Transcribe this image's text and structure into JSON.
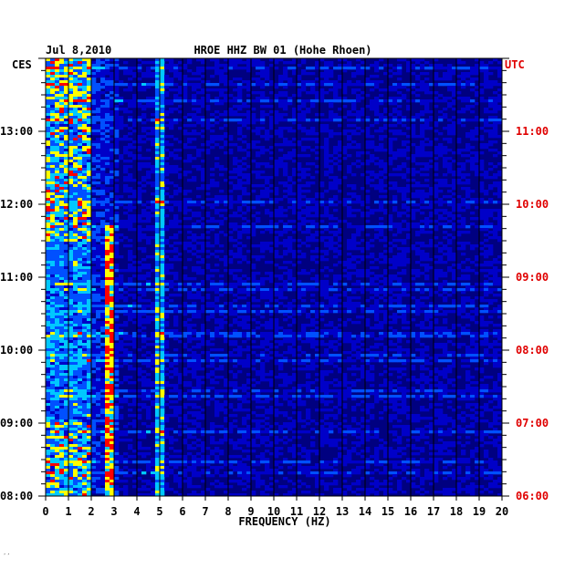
{
  "chart_data": {
    "type": "heatmap",
    "title": "HROE HHZ BW 01 (Hohe Rhoen)",
    "date": "Jul 8,2010",
    "xlabel": "FREQUENCY (HZ)",
    "xlim": [
      0,
      20
    ],
    "x_ticks": [
      "0",
      "1",
      "2",
      "3",
      "4",
      "5",
      "6",
      "7",
      "8",
      "9",
      "10",
      "11",
      "12",
      "13",
      "14",
      "15",
      "16",
      "17",
      "18",
      "19",
      "20"
    ],
    "left_axis_label": "CES",
    "right_axis_label": "UTC",
    "left_ticks": [
      {
        "hour": 8,
        "label": "08:00"
      },
      {
        "hour": 9,
        "label": "09:00"
      },
      {
        "hour": 10,
        "label": "10:00"
      },
      {
        "hour": 11,
        "label": "11:00"
      },
      {
        "hour": 12,
        "label": "12:00"
      },
      {
        "hour": 13,
        "label": "13:00"
      }
    ],
    "right_ticks": [
      {
        "hour": 6,
        "label": "06:00"
      },
      {
        "hour": 7,
        "label": "07:00"
      },
      {
        "hour": 8,
        "label": "08:00"
      },
      {
        "hour": 9,
        "label": "09:00"
      },
      {
        "hour": 10,
        "label": "10:00"
      },
      {
        "hour": 11,
        "label": "11:00"
      }
    ],
    "time_range_ces": [
      8.0,
      14.0
    ],
    "grid": true,
    "colormap": [
      "#00007a",
      "#0000c8",
      "#0050ff",
      "#00c8ff",
      "#ffff00",
      "#ff0000"
    ],
    "background_color": "#000080",
    "features": {
      "low_frequency_band_hz": [
        0,
        2
      ],
      "tremor_line_hz": 2.8,
      "narrow_line_hz": 5.0
    }
  },
  "corner_mark": "′′"
}
